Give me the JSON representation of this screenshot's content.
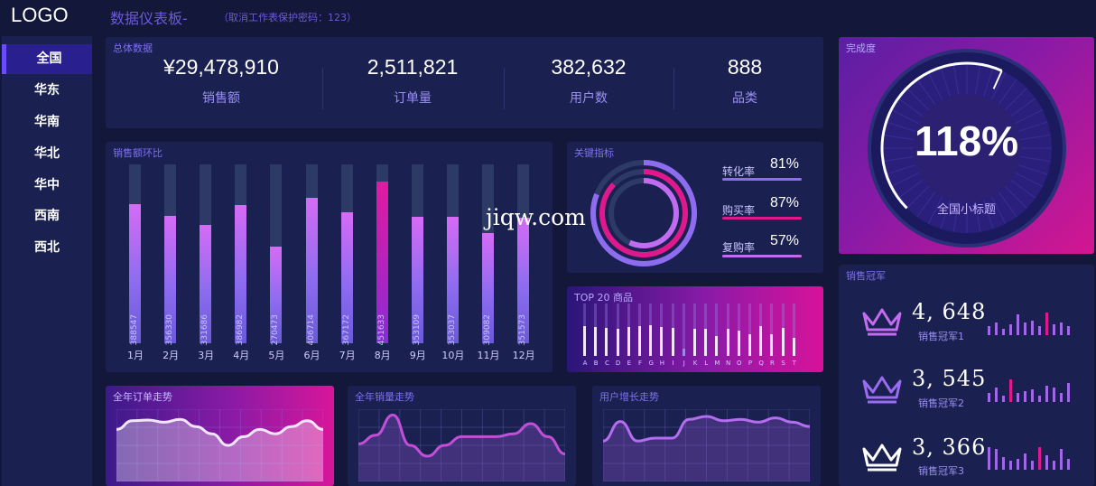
{
  "header": {
    "logo": "LOGO",
    "title": "数据仪表板-",
    "note": "（取消工作表保护密码：123）"
  },
  "sidebar": {
    "items": [
      {
        "label": "全国",
        "active": true
      },
      {
        "label": "华东"
      },
      {
        "label": "华南"
      },
      {
        "label": "华北"
      },
      {
        "label": "华中"
      },
      {
        "label": "西南"
      },
      {
        "label": "西北"
      }
    ]
  },
  "overview": {
    "title": "总体数据",
    "kpis": [
      {
        "value": "¥29,478,910",
        "label": "销售额"
      },
      {
        "value": "2,511,821",
        "label": "订单量"
      },
      {
        "value": "382,632",
        "label": "用户数"
      },
      {
        "value": "888",
        "label": "品类"
      }
    ]
  },
  "monthly": {
    "title": "销售额环比",
    "chart_data": {
      "type": "bar",
      "categories": [
        "1月",
        "2月",
        "3月",
        "4月",
        "5月",
        "6月",
        "7月",
        "8月",
        "9月",
        "10月",
        "11月",
        "12月"
      ],
      "values": [
        388547,
        356330,
        331686,
        386982,
        270473,
        406714,
        367172,
        451633,
        353109,
        353037,
        309082,
        351573
      ],
      "labels": [
        "388547",
        "356330",
        "331686",
        "386982",
        "270473",
        "406714",
        "367172",
        "451633",
        "353109",
        "353037",
        "309082",
        "351573"
      ],
      "ylim": [
        0,
        500000
      ],
      "highlight_index": 7,
      "colors": {
        "bar": "#b46cf0",
        "highlight": "#e21aa0",
        "track": "#2e3a66"
      }
    }
  },
  "key_metrics": {
    "title": "关键指标",
    "items": [
      {
        "name": "转化率",
        "value": "81%",
        "pct": 81,
        "color": "#8e6cf0"
      },
      {
        "name": "购买率",
        "value": "87%",
        "pct": 87,
        "color": "#e0188e"
      },
      {
        "name": "复购率",
        "value": "57%",
        "pct": 57,
        "color": "#c06cf0"
      }
    ]
  },
  "top20": {
    "title": "TOP 20 商品",
    "letters": [
      "A",
      "B",
      "C",
      "D",
      "E",
      "F",
      "G",
      "H",
      "I",
      "J",
      "K",
      "L",
      "M",
      "N",
      "O",
      "P",
      "Q",
      "R",
      "S",
      "T"
    ],
    "levels": [
      0.82,
      0.8,
      0.78,
      0.76,
      0.8,
      0.82,
      0.84,
      0.8,
      0.78,
      0.2,
      0.74,
      0.76,
      0.55,
      0.76,
      0.7,
      0.6,
      0.82,
      0.6,
      0.78,
      0.5
    ]
  },
  "completion": {
    "title": "完成度",
    "value": "118%",
    "pct": 118,
    "subtitle": "全国小标题"
  },
  "champions": {
    "title": "销售冠军",
    "items": [
      {
        "value": "4, 648",
        "name": "销售冠军1",
        "spark": [
          0.3,
          0.5,
          0.2,
          0.4,
          0.9,
          0.5,
          0.6,
          0.3,
          1.0,
          0.4,
          0.5,
          0.3
        ],
        "hot": 8
      },
      {
        "value": "3, 545",
        "name": "销售冠军2",
        "spark": [
          0.3,
          0.6,
          0.2,
          1.0,
          0.3,
          0.4,
          0.5,
          0.2,
          0.7,
          0.6,
          0.3,
          0.8
        ],
        "hot": 3
      },
      {
        "value": "3, 366",
        "name": "销售冠军3",
        "spark": [
          1.0,
          0.9,
          0.5,
          0.3,
          0.4,
          0.7,
          0.3,
          1.0,
          0.6,
          0.3,
          0.9,
          0.4
        ],
        "hot": 7
      }
    ]
  },
  "trends": [
    {
      "title": "全年订单走势",
      "values": [
        0.72,
        0.84,
        0.85,
        0.82,
        0.86,
        0.76,
        0.66,
        0.5,
        0.62,
        0.72,
        0.66,
        0.76,
        0.84,
        0.72
      ],
      "color": "#f2e6ff"
    },
    {
      "title": "全年销量走势",
      "values": [
        0.52,
        0.64,
        0.92,
        0.5,
        0.35,
        0.5,
        0.62,
        0.62,
        0.62,
        0.66,
        0.8,
        0.62,
        0.38
      ],
      "color": "#c34fd8"
    },
    {
      "title": "用户增长走势",
      "values": [
        0.56,
        0.83,
        0.56,
        0.6,
        0.6,
        0.86,
        0.9,
        0.84,
        0.86,
        0.82,
        0.88,
        0.82,
        0.76
      ],
      "color": "#b46cf0"
    }
  ],
  "watermark": "jiqw.com"
}
